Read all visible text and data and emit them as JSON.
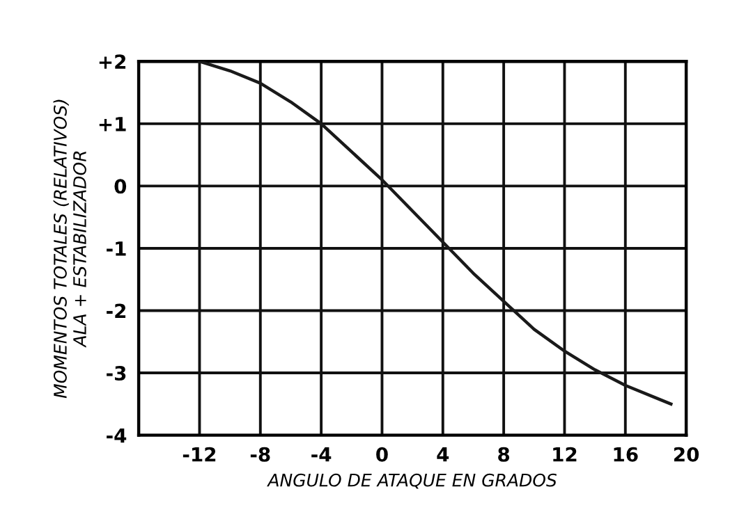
{
  "chart_data": {
    "type": "line",
    "xlabel": "ANGULO DE ATAQUE EN GRADOS",
    "ylabel": "MOMENTOS TOTALES (RELATIVOS)\nALA + ESTABILIZADOR",
    "x": [
      -12,
      -10,
      -8,
      -6,
      -4,
      -2,
      0,
      2,
      4,
      6,
      8,
      10,
      12,
      14,
      16,
      18,
      19
    ],
    "series": [
      {
        "color": "#1a1a1a",
        "values": [
          2.0,
          1.85,
          1.65,
          1.35,
          1.0,
          0.55,
          0.1,
          -0.4,
          -0.9,
          -1.4,
          -1.85,
          -2.3,
          -2.65,
          -2.95,
          -3.2,
          -3.4,
          -3.5
        ]
      }
    ],
    "xlim": [
      -16,
      20
    ],
    "ylim": [
      -4,
      2
    ],
    "xticks": [
      -12,
      -8,
      -4,
      0,
      4,
      8,
      12,
      16,
      20
    ],
    "yticks": [
      {
        "value": 2,
        "label": "+2"
      },
      {
        "value": 1,
        "label": "+1"
      },
      0,
      -1,
      -2,
      -3,
      -4
    ],
    "grid": true,
    "line_style": "solid",
    "marker": "none"
  }
}
